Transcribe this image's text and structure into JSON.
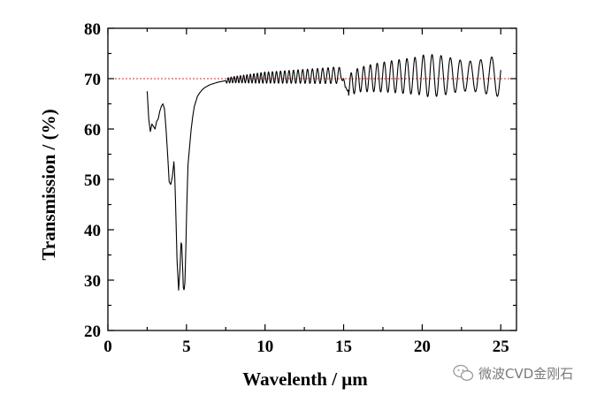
{
  "chart_data": {
    "type": "line",
    "title": "",
    "xlabel": "Wavelenth / μm",
    "ylabel": "Transmission / (%)",
    "xlim": [
      0,
      26
    ],
    "ylim": [
      20,
      80
    ],
    "xticks": [
      0,
      5,
      10,
      15,
      20,
      25
    ],
    "yticks": [
      20,
      30,
      40,
      50,
      60,
      70,
      80
    ],
    "xtick_labels": [
      "0",
      "5",
      "10",
      "15",
      "20",
      "25"
    ],
    "ytick_labels": [
      "20",
      "30",
      "40",
      "50",
      "60",
      "70",
      "80"
    ],
    "reference_line": {
      "y": 70,
      "style": "dashed",
      "color": "#cc3333"
    },
    "series": [
      {
        "name": "Transmission",
        "color": "#000000",
        "x": [
          2.5,
          2.6,
          2.7,
          2.8,
          2.9,
          3.0,
          3.1,
          3.2,
          3.3,
          3.4,
          3.5,
          3.6,
          3.7,
          3.8,
          3.9,
          4.0,
          4.1,
          4.2,
          4.25,
          4.3,
          4.35,
          4.4,
          4.5,
          4.6,
          4.65,
          4.7,
          4.75,
          4.8,
          4.85,
          4.9,
          4.95,
          5.0,
          5.05,
          5.1,
          5.2,
          5.3,
          5.4,
          5.5,
          5.6,
          5.7,
          5.8,
          6.0,
          6.2,
          6.5,
          7.0,
          7.5,
          8.0,
          9.0,
          10.0,
          11.0,
          12.0,
          13.0,
          14.0,
          14.5,
          14.9,
          15.0,
          15.1,
          15.3,
          15.6,
          16.0,
          17.0,
          18.0,
          19.0,
          20.0,
          21.0,
          22.0,
          23.0,
          24.0,
          25.0
        ],
        "y": [
          67.5,
          62.0,
          59.5,
          61.0,
          60.5,
          60.0,
          61.5,
          62.0,
          63.5,
          64.5,
          65.0,
          64.0,
          60.0,
          55.0,
          49.5,
          49.0,
          50.5,
          53.5,
          51.0,
          46.0,
          40.0,
          34.0,
          28.0,
          33.0,
          37.5,
          37.0,
          33.0,
          28.5,
          28.0,
          29.5,
          35.0,
          42.0,
          48.0,
          53.0,
          56.5,
          60.0,
          62.5,
          64.5,
          65.5,
          66.5,
          67.0,
          67.8,
          68.3,
          68.8,
          69.3,
          69.6,
          69.8,
          70.0,
          70.2,
          70.3,
          70.4,
          70.5,
          70.6,
          70.7,
          70.5,
          70.0,
          67.5,
          68.5,
          69.2,
          69.8,
          70.2,
          70.4,
          70.5,
          70.6,
          70.6,
          70.6,
          70.5,
          70.5,
          70.5
        ],
        "fringe_amplitude_note": "rapid oscillation superimposed above ~7.5 um"
      }
    ]
  },
  "watermark": {
    "icon": "wechat-icon",
    "text": "微波CVD金刚石"
  }
}
